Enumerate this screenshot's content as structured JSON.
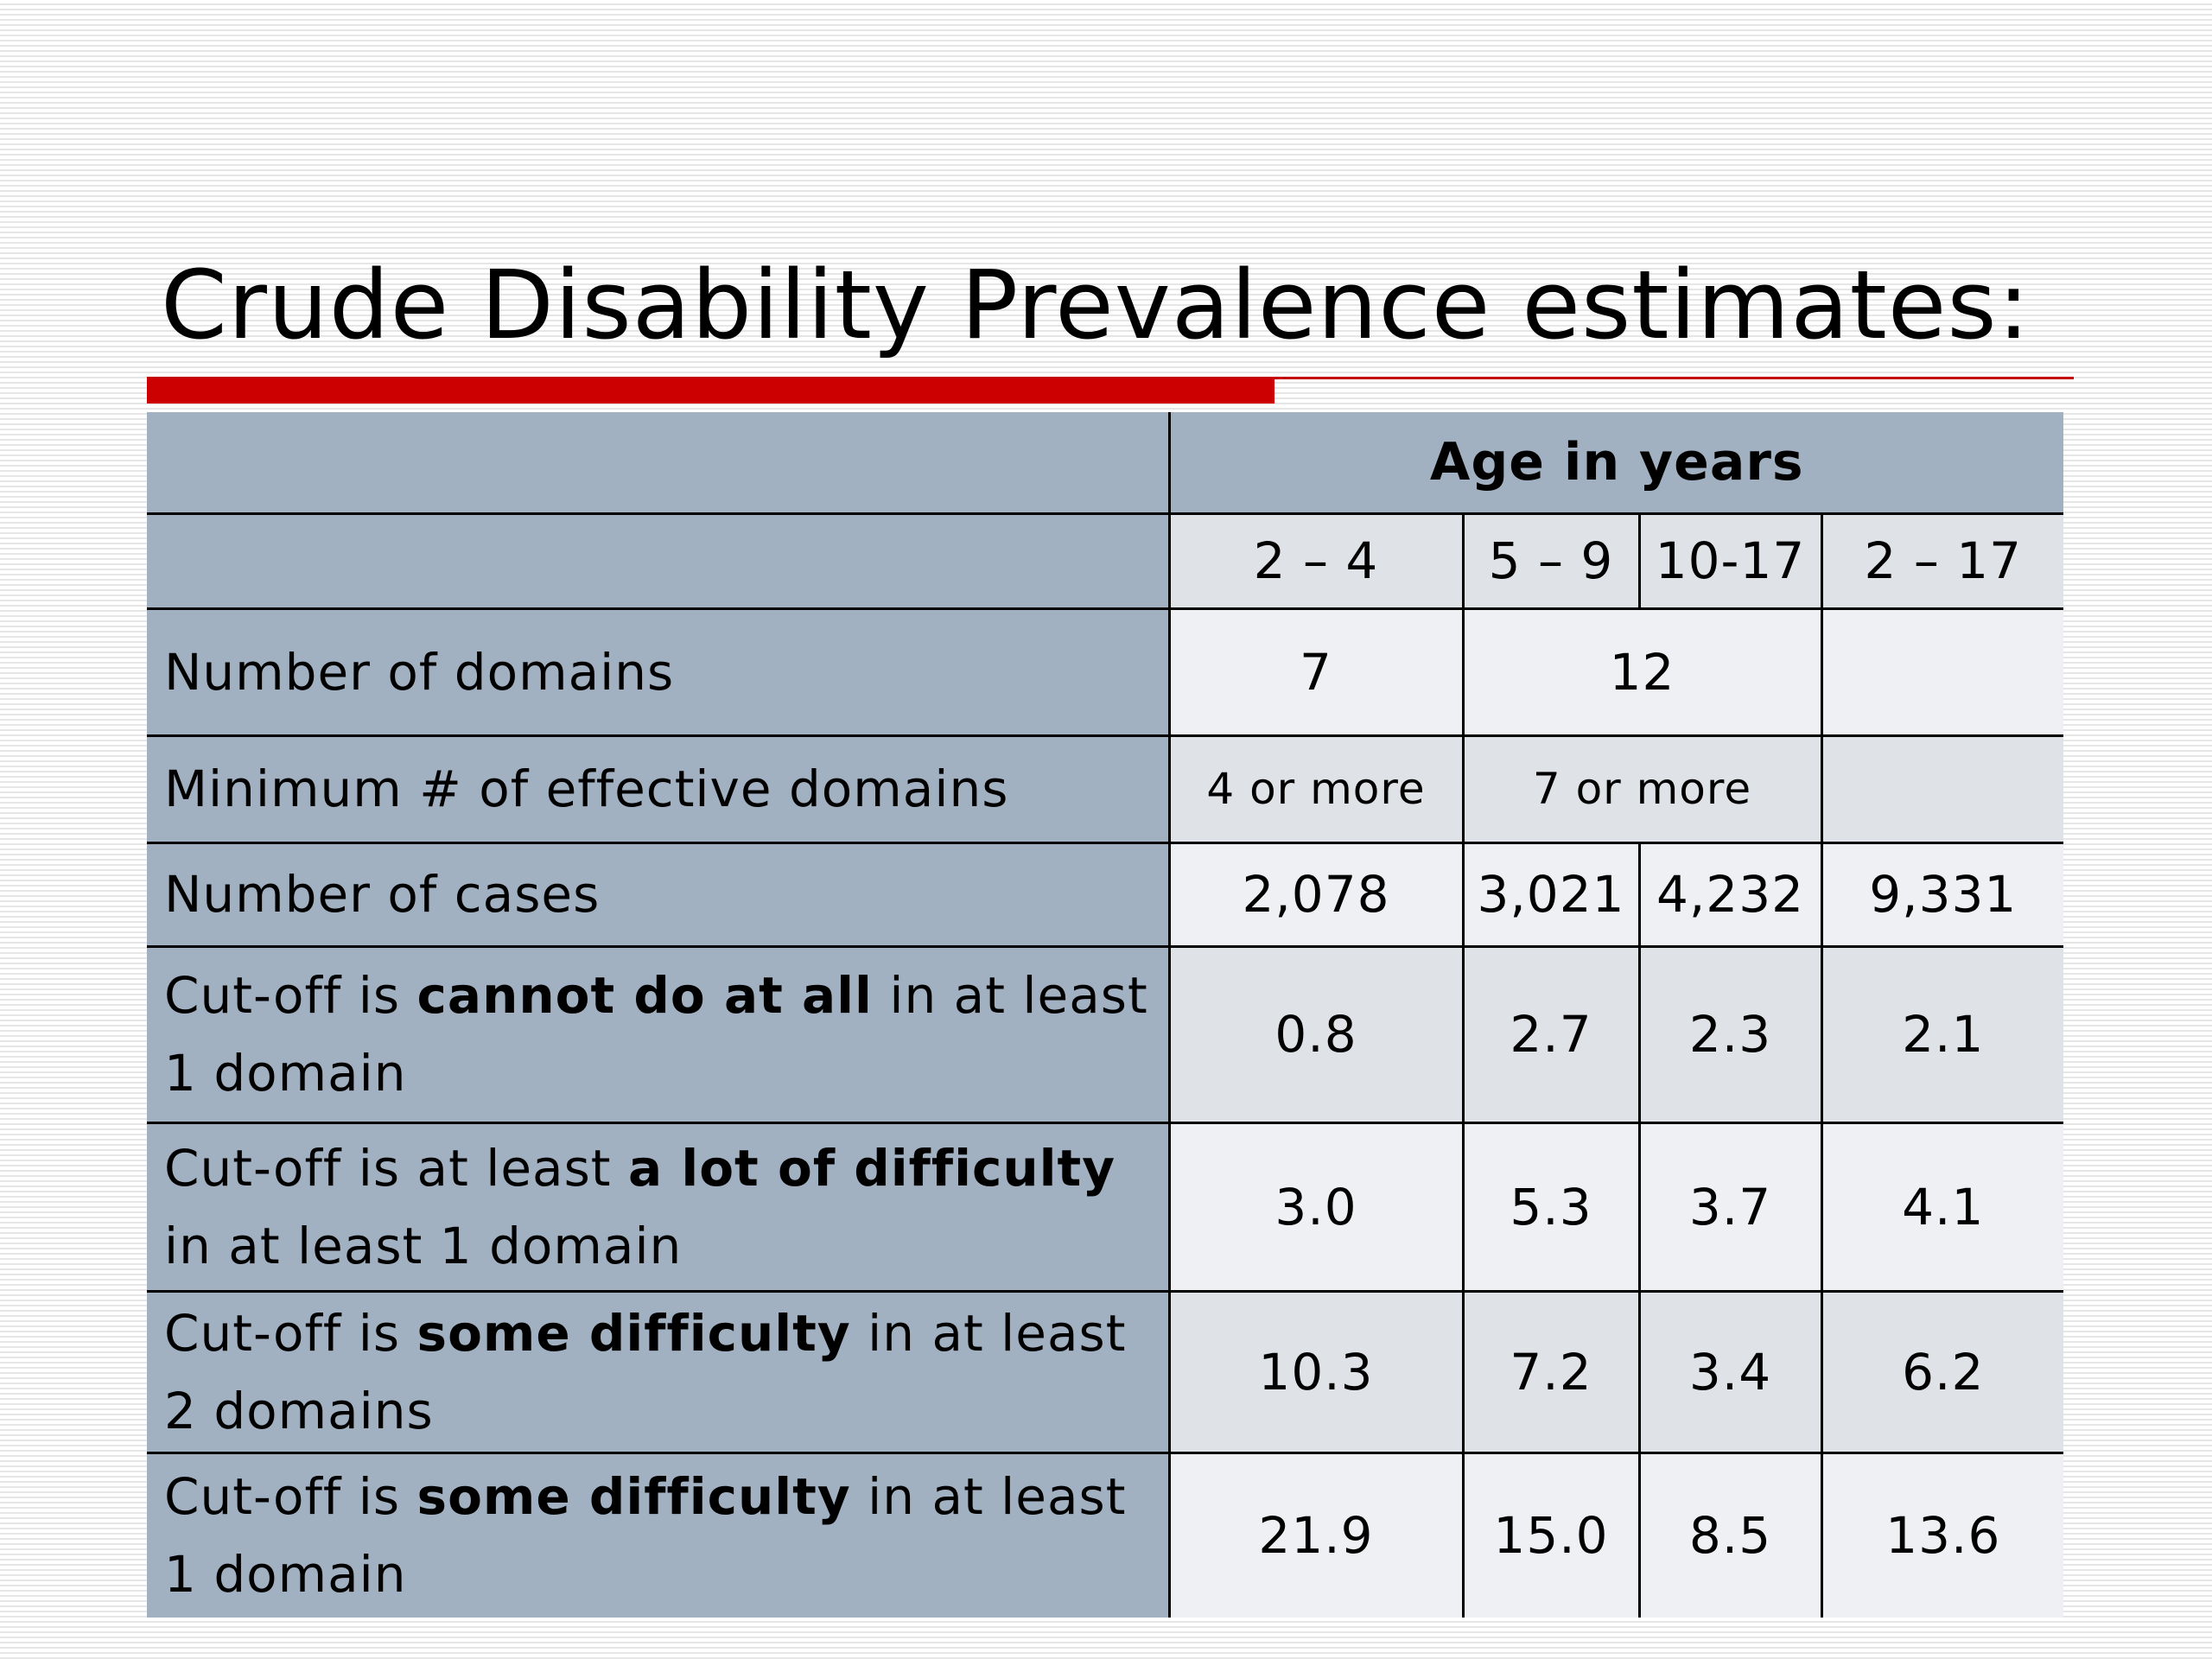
{
  "slide": {
    "title": "Crude Disability Prevalence estimates:"
  },
  "table": {
    "header": {
      "group_label": "Age in years",
      "age_groups": [
        "2 – 4",
        "5 – 9",
        "10-17",
        "2 – 17"
      ]
    },
    "domains_row": {
      "label": "Number of domains",
      "values": [
        "7",
        "12"
      ]
    },
    "min_domains_row": {
      "label": "Minimum # of effective domains",
      "values": [
        "4 or more",
        "7 or more"
      ]
    },
    "cases_row": {
      "label": "Number of cases",
      "values": [
        "2,078",
        "3,021",
        "4,232",
        "9,331"
      ]
    },
    "cutoff_rows": [
      {
        "label_pre": "Cut-off is ",
        "label_bold": "cannot do at all",
        "label_post": " in at least 1 domain",
        "values": [
          "0.8",
          "2.7",
          "2.3",
          "2.1"
        ]
      },
      {
        "label_pre": "Cut-off is at least ",
        "label_bold": "a lot of difficulty",
        "label_post": " in at least 1 domain",
        "values": [
          "3.0",
          "5.3",
          "3.7",
          "4.1"
        ]
      },
      {
        "label_pre": "Cut-off is ",
        "label_bold": "some difficulty",
        "label_post": " in at least 2 domains",
        "values": [
          "10.3",
          "7.2",
          "3.4",
          "6.2"
        ]
      },
      {
        "label_pre": "Cut-off is ",
        "label_bold": "some difficulty",
        "label_post": " in at least 1 domain",
        "values": [
          "21.9",
          "15.0",
          "8.5",
          "13.6"
        ]
      }
    ]
  },
  "colors": {
    "accent_red": "#cc0000",
    "label_column": "#a2b1c2",
    "cell_light": "#eff0f4",
    "cell_dark": "#dfe2e7"
  }
}
